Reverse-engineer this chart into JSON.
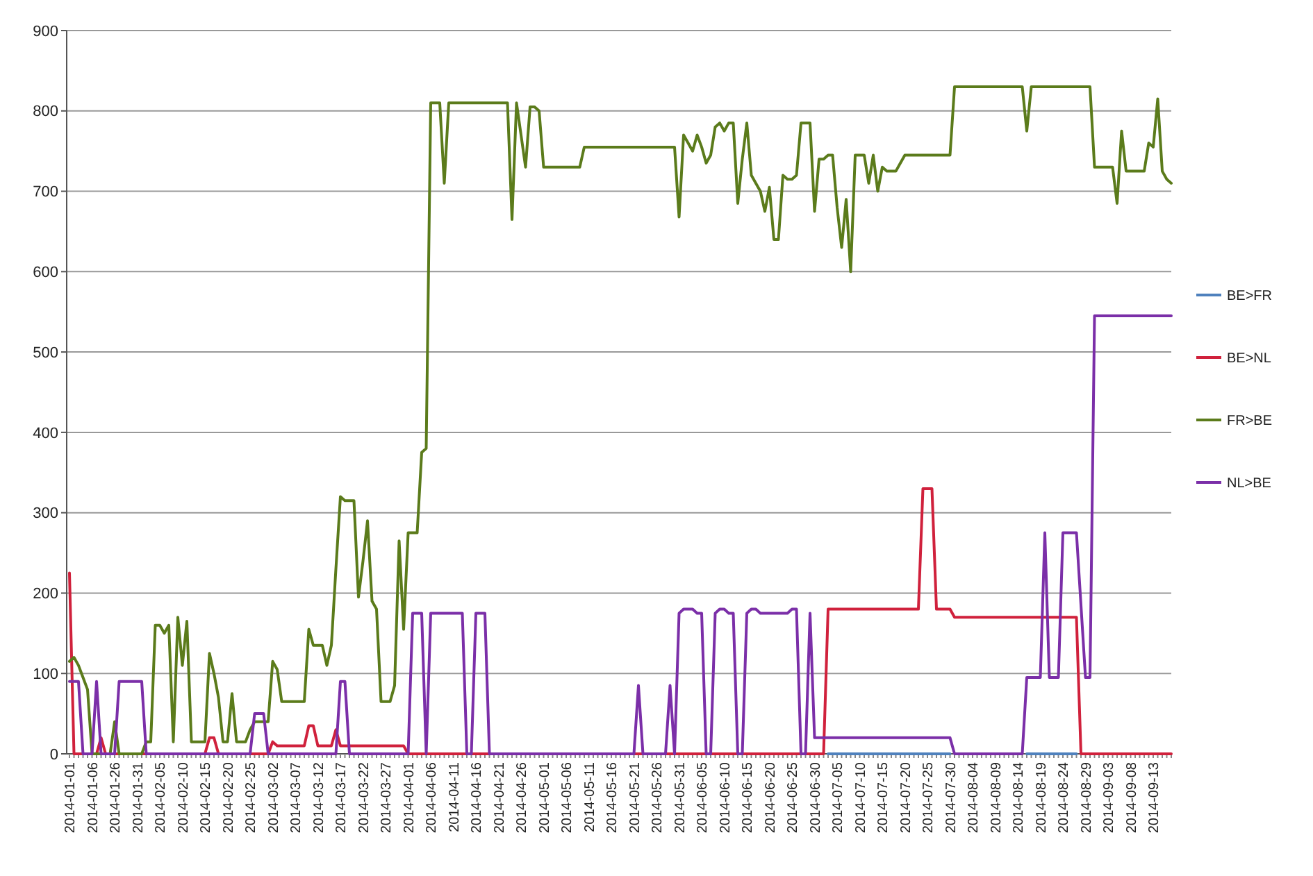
{
  "chart_data": {
    "type": "line",
    "categories": [
      "2014-01-01",
      null,
      null,
      null,
      null,
      "2014-01-06",
      null,
      null,
      null,
      null,
      "2014-01-26",
      null,
      null,
      null,
      null,
      "2014-01-31",
      null,
      null,
      null,
      null,
      "2014-02-05",
      null,
      null,
      null,
      null,
      "2014-02-10",
      null,
      null,
      null,
      null,
      "2014-02-15",
      null,
      null,
      null,
      null,
      "2014-02-20",
      null,
      null,
      null,
      null,
      "2014-02-25",
      null,
      null,
      null,
      null,
      "2014-03-02",
      null,
      null,
      null,
      null,
      "2014-03-07",
      null,
      null,
      null,
      null,
      "2014-03-12",
      null,
      null,
      null,
      null,
      "2014-03-17",
      null,
      null,
      null,
      null,
      "2014-03-22",
      null,
      null,
      null,
      null,
      "2014-03-27",
      null,
      null,
      null,
      null,
      "2014-04-01",
      null,
      null,
      null,
      null,
      "2014-04-06",
      null,
      null,
      null,
      null,
      "2014-04-11",
      null,
      null,
      null,
      null,
      "2014-04-16",
      null,
      null,
      null,
      null,
      "2014-04-21",
      null,
      null,
      null,
      null,
      "2014-04-26",
      null,
      null,
      null,
      null,
      "2014-05-01",
      null,
      null,
      null,
      null,
      "2014-05-06",
      null,
      null,
      null,
      null,
      "2014-05-11",
      null,
      null,
      null,
      null,
      "2014-05-16",
      null,
      null,
      null,
      null,
      "2014-05-21",
      null,
      null,
      null,
      null,
      "2014-05-26",
      null,
      null,
      null,
      null,
      "2014-05-31",
      null,
      null,
      null,
      null,
      "2014-06-05",
      null,
      null,
      null,
      null,
      "2014-06-10",
      null,
      null,
      null,
      null,
      "2014-06-15",
      null,
      null,
      null,
      null,
      "2014-06-20",
      null,
      null,
      null,
      null,
      "2014-06-25",
      null,
      null,
      null,
      null,
      "2014-06-30",
      null,
      null,
      null,
      null,
      "2014-07-05",
      null,
      null,
      null,
      null,
      "2014-07-10",
      null,
      null,
      null,
      null,
      "2014-07-15",
      null,
      null,
      null,
      null,
      "2014-07-20",
      null,
      null,
      null,
      null,
      "2014-07-25",
      null,
      null,
      null,
      null,
      "2014-07-30",
      null,
      null,
      null,
      null,
      "2014-08-04",
      null,
      null,
      null,
      null,
      "2014-08-09",
      null,
      null,
      null,
      null,
      "2014-08-14",
      null,
      null,
      null,
      null,
      "2014-08-19",
      null,
      null,
      null,
      null,
      "2014-08-24",
      null,
      null,
      null,
      null,
      "2014-08-29",
      null,
      null,
      null,
      null,
      "2014-09-03",
      null,
      null,
      null,
      null,
      "2014-09-08",
      null,
      null,
      null,
      null,
      "2014-09-13",
      null,
      null,
      null,
      null
    ],
    "series": [
      {
        "name": "BE>FR",
        "color": "#4f81bd",
        "values": [
          null,
          null,
          null,
          null,
          null,
          null,
          null,
          null,
          null,
          null,
          null,
          null,
          null,
          null,
          null,
          null,
          null,
          null,
          null,
          null,
          null,
          null,
          null,
          null,
          null,
          null,
          null,
          null,
          null,
          null,
          null,
          null,
          null,
          null,
          null,
          null,
          null,
          null,
          null,
          null,
          null,
          null,
          null,
          null,
          null,
          null,
          null,
          null,
          null,
          null,
          null,
          null,
          null,
          null,
          null,
          null,
          null,
          null,
          null,
          null,
          null,
          null,
          null,
          null,
          null,
          null,
          null,
          null,
          null,
          null,
          null,
          null,
          null,
          null,
          null,
          null,
          null,
          null,
          null,
          null,
          null,
          null,
          null,
          null,
          null,
          null,
          null,
          null,
          null,
          null,
          null,
          null,
          null,
          null,
          null,
          null,
          null,
          null,
          null,
          null,
          null,
          null,
          null,
          null,
          null,
          null,
          null,
          null,
          null,
          null,
          null,
          null,
          null,
          null,
          null,
          null,
          null,
          null,
          null,
          null,
          null,
          null,
          null,
          null,
          null,
          null,
          null,
          null,
          null,
          null,
          null,
          null,
          null,
          null,
          null,
          null,
          null,
          null,
          null,
          null,
          null,
          null,
          null,
          null,
          null,
          null,
          null,
          null,
          null,
          null,
          null,
          null,
          null,
          null,
          null,
          null,
          null,
          null,
          null,
          null,
          null,
          null,
          null,
          null,
          null,
          null,
          null,
          null,
          0,
          0,
          0,
          0,
          0,
          0,
          0,
          0,
          0,
          0,
          0,
          0,
          0,
          0,
          0,
          0,
          0,
          0,
          0,
          0,
          0,
          0,
          0,
          0,
          0,
          0,
          0,
          0,
          null,
          null,
          null,
          null,
          null,
          null,
          null,
          null,
          null,
          null,
          null,
          null,
          null,
          null,
          null,
          null,
          0,
          0,
          0,
          0,
          0,
          0,
          0,
          0,
          0,
          0,
          0,
          0,
          null,
          null,
          null,
          null,
          null,
          null,
          null,
          null,
          null,
          null,
          null,
          null,
          null,
          null,
          null,
          null,
          null,
          null,
          null,
          null,
          null
        ]
      },
      {
        "name": "BE>NL",
        "color": "#d0213c",
        "values": [
          225,
          0,
          0,
          0,
          0,
          0,
          0,
          20,
          0,
          0,
          0,
          0,
          0,
          0,
          0,
          0,
          0,
          0,
          0,
          0,
          0,
          0,
          0,
          0,
          0,
          0,
          0,
          0,
          0,
          0,
          0,
          20,
          20,
          0,
          0,
          0,
          0,
          0,
          0,
          0,
          0,
          0,
          0,
          0,
          0,
          15,
          10,
          10,
          10,
          10,
          10,
          10,
          10,
          35,
          35,
          10,
          10,
          10,
          10,
          30,
          10,
          10,
          10,
          10,
          10,
          10,
          10,
          10,
          10,
          10,
          10,
          10,
          10,
          10,
          10,
          0,
          0,
          0,
          0,
          0,
          0,
          0,
          0,
          0,
          0,
          0,
          0,
          0,
          0,
          0,
          0,
          0,
          0,
          0,
          0,
          0,
          0,
          0,
          0,
          0,
          0,
          0,
          0,
          0,
          0,
          0,
          0,
          0,
          0,
          0,
          0,
          0,
          0,
          0,
          0,
          0,
          0,
          0,
          0,
          0,
          0,
          0,
          0,
          0,
          0,
          0,
          0,
          0,
          0,
          0,
          0,
          0,
          0,
          0,
          0,
          0,
          0,
          0,
          0,
          0,
          0,
          0,
          0,
          0,
          0,
          0,
          0,
          0,
          0,
          0,
          0,
          0,
          0,
          0,
          0,
          0,
          0,
          0,
          0,
          0,
          0,
          0,
          0,
          0,
          0,
          0,
          0,
          0,
          180,
          180,
          180,
          180,
          180,
          180,
          180,
          180,
          180,
          180,
          180,
          180,
          180,
          180,
          180,
          180,
          180,
          180,
          180,
          180,
          180,
          330,
          330,
          330,
          180,
          180,
          180,
          180,
          170,
          170,
          170,
          170,
          170,
          170,
          170,
          170,
          170,
          170,
          170,
          170,
          170,
          170,
          170,
          170,
          170,
          170,
          170,
          170,
          170,
          170,
          170,
          170,
          170,
          170,
          170,
          170,
          0,
          0,
          0,
          0,
          0,
          0,
          0,
          0,
          0,
          0,
          0,
          0,
          0,
          0,
          0,
          0,
          0,
          0,
          0,
          0,
          0
        ]
      },
      {
        "name": "FR>BE",
        "color": "#5b7b1b",
        "values": [
          115,
          120,
          110,
          95,
          80,
          0,
          0,
          0,
          0,
          0,
          40,
          0,
          0,
          0,
          0,
          0,
          0,
          15,
          15,
          160,
          160,
          150,
          160,
          15,
          170,
          110,
          165,
          15,
          15,
          15,
          15,
          125,
          100,
          70,
          15,
          15,
          75,
          15,
          15,
          15,
          30,
          40,
          40,
          40,
          40,
          115,
          105,
          65,
          65,
          65,
          65,
          65,
          65,
          155,
          135,
          135,
          135,
          110,
          135,
          230,
          320,
          315,
          315,
          315,
          195,
          240,
          290,
          190,
          180,
          65,
          65,
          65,
          85,
          265,
          155,
          275,
          275,
          275,
          375,
          380,
          810,
          810,
          810,
          710,
          810,
          810,
          810,
          810,
          810,
          810,
          810,
          810,
          810,
          810,
          810,
          810,
          810,
          810,
          665,
          810,
          770,
          730,
          805,
          805,
          800,
          730,
          730,
          730,
          730,
          730,
          730,
          730,
          730,
          730,
          755,
          755,
          755,
          755,
          755,
          755,
          755,
          755,
          755,
          755,
          755,
          755,
          755,
          755,
          755,
          755,
          755,
          755,
          755,
          755,
          755,
          668,
          770,
          760,
          750,
          770,
          755,
          735,
          745,
          780,
          785,
          775,
          785,
          785,
          685,
          740,
          785,
          720,
          710,
          700,
          675,
          705,
          640,
          640,
          720,
          715,
          715,
          720,
          785,
          785,
          785,
          675,
          740,
          740,
          745,
          745,
          680,
          630,
          690,
          600,
          745,
          745,
          745,
          710,
          745,
          700,
          730,
          725,
          725,
          725,
          735,
          745,
          745,
          745,
          745,
          745,
          745,
          745,
          745,
          745,
          745,
          745,
          830,
          830,
          830,
          830,
          830,
          830,
          830,
          830,
          830,
          830,
          830,
          830,
          830,
          830,
          830,
          830,
          775,
          830,
          830,
          830,
          830,
          830,
          830,
          830,
          830,
          830,
          830,
          830,
          830,
          830,
          830,
          730,
          730,
          730,
          730,
          730,
          685,
          775,
          725,
          725,
          725,
          725,
          725,
          760,
          755,
          815,
          725,
          715,
          710
        ]
      },
      {
        "name": "NL>BE",
        "color": "#7b2fa8",
        "values": [
          90,
          90,
          90,
          0,
          0,
          0,
          90,
          0,
          0,
          0,
          0,
          90,
          90,
          90,
          90,
          90,
          90,
          0,
          0,
          0,
          0,
          0,
          0,
          0,
          0,
          0,
          0,
          0,
          0,
          0,
          0,
          0,
          0,
          0,
          0,
          0,
          0,
          0,
          0,
          0,
          0,
          50,
          50,
          50,
          0,
          0,
          0,
          0,
          0,
          0,
          0,
          0,
          0,
          0,
          0,
          0,
          0,
          0,
          0,
          0,
          90,
          90,
          0,
          0,
          0,
          0,
          0,
          0,
          0,
          0,
          0,
          0,
          0,
          0,
          0,
          0,
          175,
          175,
          175,
          0,
          175,
          175,
          175,
          175,
          175,
          175,
          175,
          175,
          0,
          0,
          175,
          175,
          175,
          0,
          0,
          0,
          0,
          0,
          0,
          0,
          0,
          0,
          0,
          0,
          0,
          0,
          0,
          0,
          0,
          0,
          0,
          0,
          0,
          0,
          0,
          0,
          0,
          0,
          0,
          0,
          0,
          0,
          0,
          0,
          0,
          0,
          85,
          0,
          0,
          0,
          0,
          0,
          0,
          85,
          0,
          175,
          180,
          180,
          180,
          175,
          175,
          0,
          0,
          175,
          180,
          180,
          175,
          175,
          0,
          0,
          175,
          180,
          180,
          175,
          175,
          175,
          175,
          175,
          175,
          175,
          180,
          180,
          0,
          0,
          175,
          20,
          20,
          20,
          20,
          20,
          20,
          20,
          20,
          20,
          20,
          20,
          20,
          20,
          20,
          20,
          20,
          20,
          20,
          20,
          20,
          20,
          20,
          20,
          20,
          20,
          20,
          20,
          20,
          20,
          20,
          20,
          0,
          0,
          0,
          0,
          0,
          0,
          0,
          0,
          0,
          0,
          0,
          0,
          0,
          0,
          0,
          0,
          95,
          95,
          95,
          95,
          275,
          95,
          95,
          95,
          275,
          275,
          275,
          275,
          185,
          95,
          95,
          545,
          545,
          545,
          545,
          545,
          545,
          545,
          545,
          545,
          545,
          545,
          545,
          545,
          545,
          545,
          545,
          545,
          545
        ]
      }
    ],
    "ylim": [
      0,
      900
    ],
    "yticks": [
      0,
      100,
      200,
      300,
      400,
      500,
      600,
      700,
      800,
      900
    ],
    "grid": "y",
    "legend": "right"
  }
}
